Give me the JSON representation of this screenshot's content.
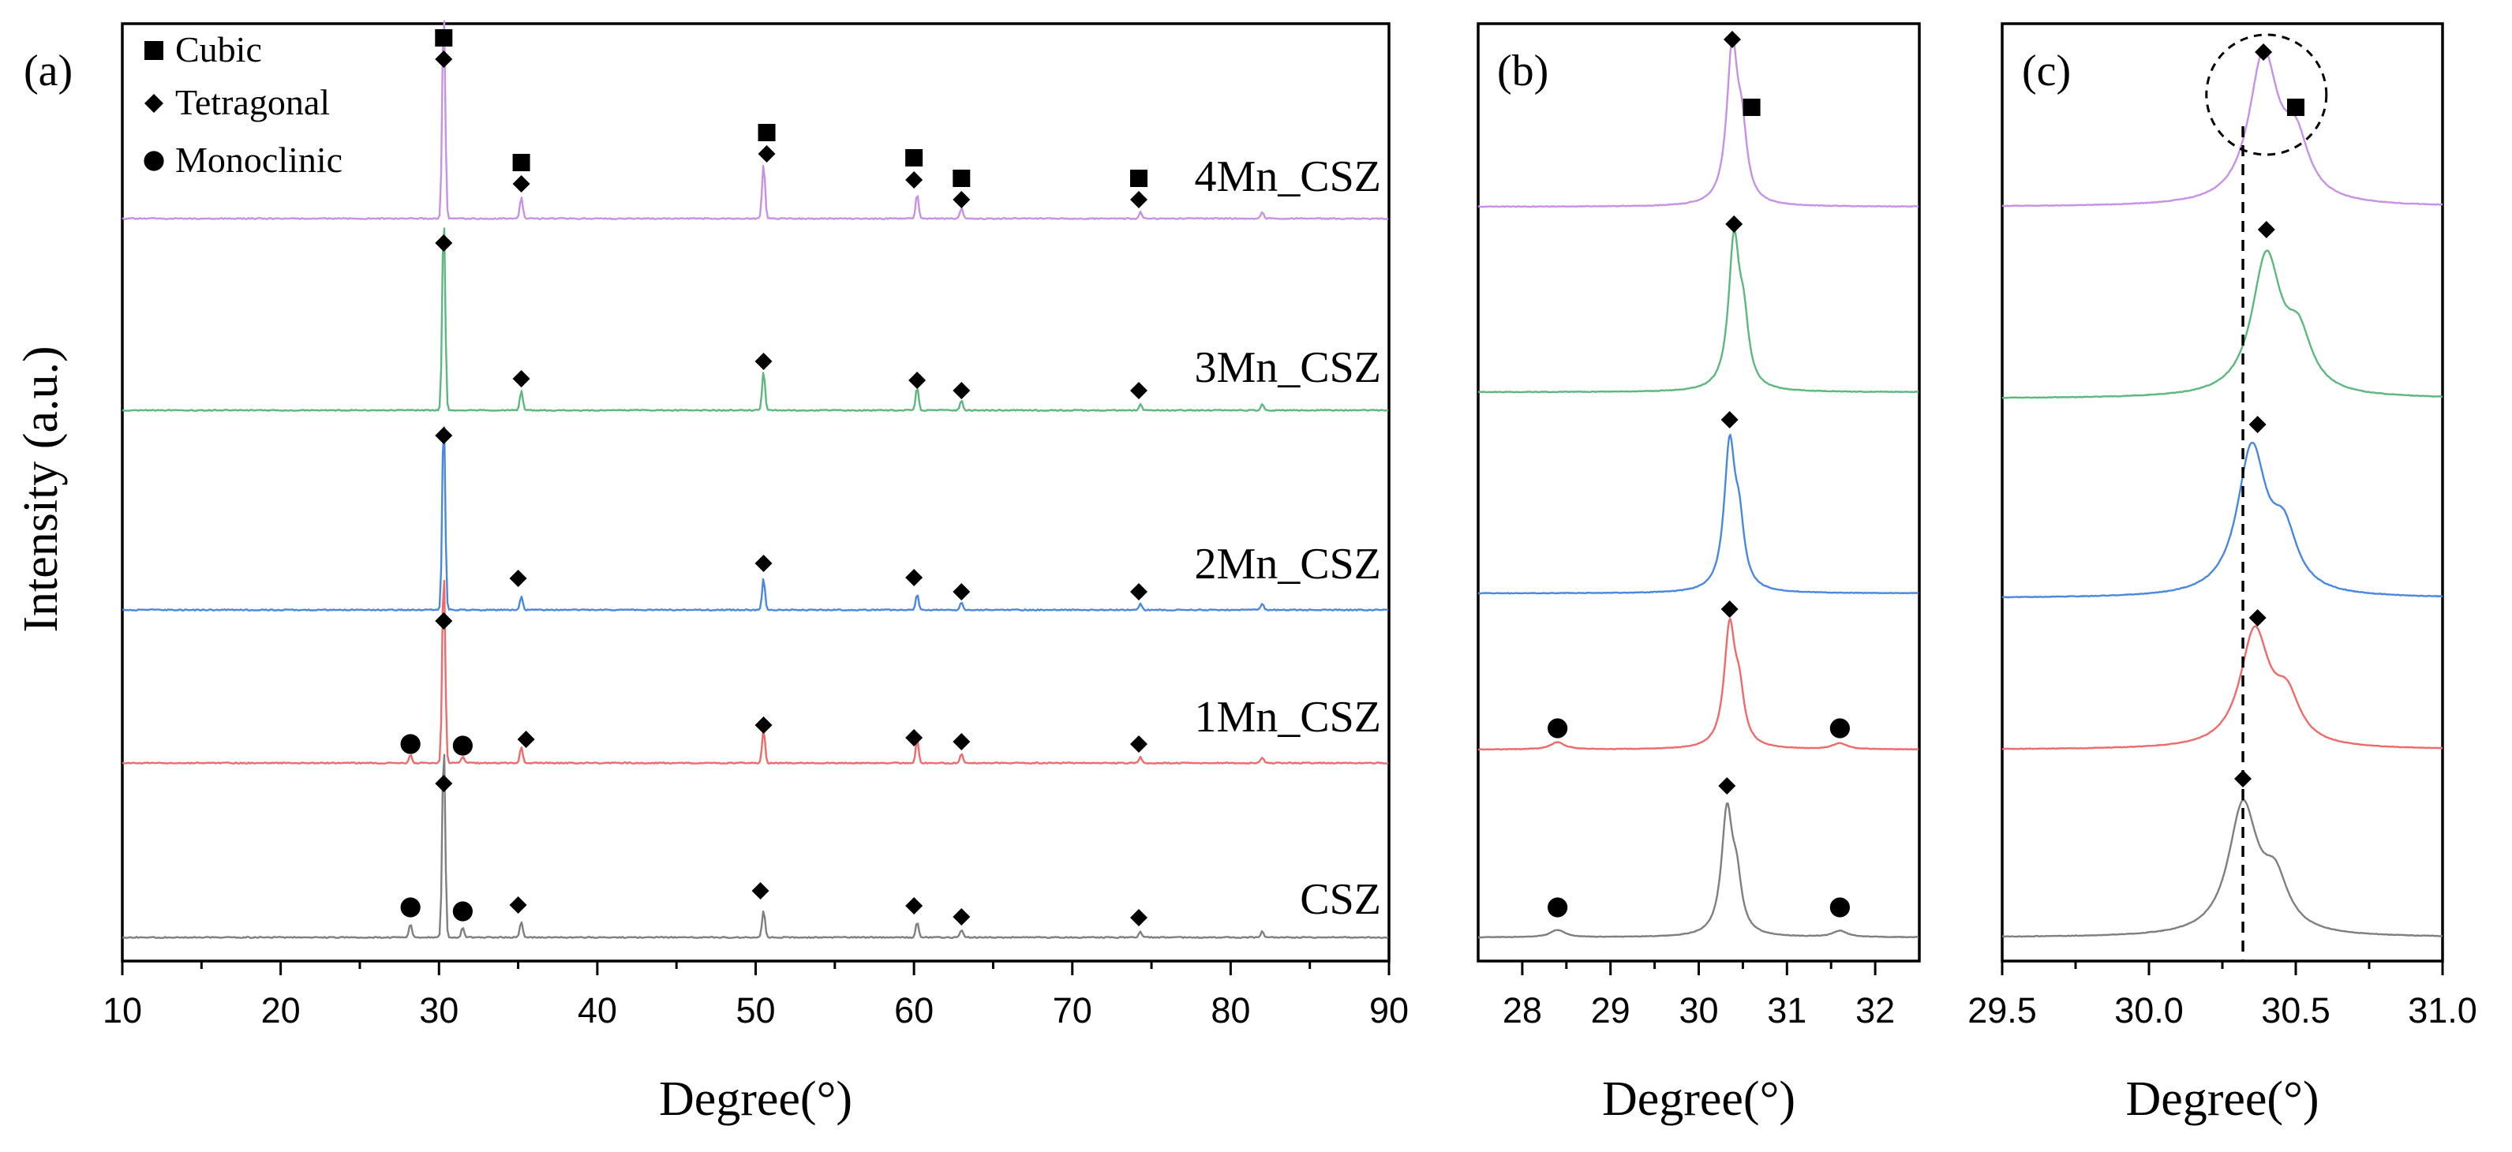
{
  "chart_data": [
    {
      "panel": "(a)",
      "type": "line",
      "xlabel": "Degree(°)",
      "ylabel": "Intensity (a.u.)",
      "xlim": [
        10,
        90
      ],
      "xticks": [
        "10",
        "20",
        "30",
        "40",
        "50",
        "60",
        "70",
        "80",
        "90"
      ],
      "legend": [
        {
          "marker": "square",
          "label": "Cubic"
        },
        {
          "marker": "diamond",
          "label": "Tetragonal"
        },
        {
          "marker": "circle",
          "label": "Monoclinic"
        }
      ],
      "legend_position": "top-left",
      "series": [
        {
          "name": "4Mn_CSZ",
          "color": "#c792e6",
          "peaks": [
            {
              "x": 30.3,
              "h": 1.0
            },
            {
              "x": 35.2,
              "h": 0.1
            },
            {
              "x": 50.5,
              "h": 0.26
            },
            {
              "x": 60.2,
              "h": 0.12
            },
            {
              "x": 63.0,
              "h": 0.05
            },
            {
              "x": 74.3,
              "h": 0.03
            },
            {
              "x": 82.0,
              "h": 0.03
            }
          ],
          "markers": [
            {
              "x": 30.3,
              "shape": "square"
            },
            {
              "x": 30.3,
              "shape": "diamond"
            },
            {
              "x": 35.2,
              "shape": "square"
            },
            {
              "x": 35.2,
              "shape": "diamond"
            },
            {
              "x": 50.7,
              "shape": "square"
            },
            {
              "x": 50.7,
              "shape": "diamond"
            },
            {
              "x": 60.0,
              "shape": "square"
            },
            {
              "x": 60.0,
              "shape": "diamond"
            },
            {
              "x": 63.0,
              "shape": "square"
            },
            {
              "x": 63.0,
              "shape": "diamond"
            },
            {
              "x": 74.2,
              "shape": "square"
            },
            {
              "x": 74.2,
              "shape": "diamond"
            }
          ]
        },
        {
          "name": "3Mn_CSZ",
          "color": "#5cb87e",
          "peaks": [
            {
              "x": 30.3,
              "h": 1.0
            },
            {
              "x": 35.2,
              "h": 0.1
            },
            {
              "x": 50.5,
              "h": 0.2
            },
            {
              "x": 60.2,
              "h": 0.12
            },
            {
              "x": 63.0,
              "h": 0.05
            },
            {
              "x": 74.3,
              "h": 0.03
            },
            {
              "x": 82.0,
              "h": 0.03
            }
          ],
          "markers": [
            {
              "x": 30.3,
              "shape": "diamond"
            },
            {
              "x": 35.2,
              "shape": "diamond"
            },
            {
              "x": 50.5,
              "shape": "diamond"
            },
            {
              "x": 60.2,
              "shape": "diamond"
            },
            {
              "x": 63.0,
              "shape": "diamond"
            },
            {
              "x": 74.2,
              "shape": "diamond"
            }
          ]
        },
        {
          "name": "2Mn_CSZ",
          "color": "#4a88e0",
          "peaks": [
            {
              "x": 30.3,
              "h": 1.0
            },
            {
              "x": 35.2,
              "h": 0.07
            },
            {
              "x": 50.5,
              "h": 0.16
            },
            {
              "x": 60.2,
              "h": 0.08
            },
            {
              "x": 63.0,
              "h": 0.04
            },
            {
              "x": 74.3,
              "h": 0.03
            },
            {
              "x": 82.0,
              "h": 0.03
            }
          ],
          "markers": [
            {
              "x": 30.3,
              "shape": "diamond"
            },
            {
              "x": 35.0,
              "shape": "diamond"
            },
            {
              "x": 50.5,
              "shape": "diamond"
            },
            {
              "x": 60.0,
              "shape": "diamond"
            },
            {
              "x": 63.0,
              "shape": "diamond"
            },
            {
              "x": 74.2,
              "shape": "diamond"
            }
          ]
        },
        {
          "name": "1Mn_CSZ",
          "color": "#ef6a6a",
          "peaks": [
            {
              "x": 28.2,
              "h": 0.04
            },
            {
              "x": 30.3,
              "h": 1.0
            },
            {
              "x": 31.5,
              "h": 0.03
            },
            {
              "x": 35.2,
              "h": 0.08
            },
            {
              "x": 50.5,
              "h": 0.17
            },
            {
              "x": 60.2,
              "h": 0.12
            },
            {
              "x": 63.0,
              "h": 0.05
            },
            {
              "x": 74.3,
              "h": 0.03
            },
            {
              "x": 82.0,
              "h": 0.03
            }
          ],
          "markers": [
            {
              "x": 28.2,
              "shape": "circle"
            },
            {
              "x": 31.5,
              "shape": "circle"
            },
            {
              "x": 30.3,
              "shape": "diamond"
            },
            {
              "x": 35.5,
              "shape": "diamond"
            },
            {
              "x": 50.5,
              "shape": "diamond"
            },
            {
              "x": 60.0,
              "shape": "diamond"
            },
            {
              "x": 63.0,
              "shape": "diamond"
            },
            {
              "x": 74.2,
              "shape": "diamond"
            }
          ]
        },
        {
          "name": "CSZ",
          "color": "#7f7f7f",
          "peaks": [
            {
              "x": 28.2,
              "h": 0.07
            },
            {
              "x": 30.3,
              "h": 1.0
            },
            {
              "x": 31.5,
              "h": 0.05
            },
            {
              "x": 35.2,
              "h": 0.08
            },
            {
              "x": 50.5,
              "h": 0.14
            },
            {
              "x": 60.2,
              "h": 0.08
            },
            {
              "x": 63.0,
              "h": 0.04
            },
            {
              "x": 74.3,
              "h": 0.03
            },
            {
              "x": 82.0,
              "h": 0.03
            }
          ],
          "markers": [
            {
              "x": 28.2,
              "shape": "circle"
            },
            {
              "x": 31.5,
              "shape": "circle"
            },
            {
              "x": 30.3,
              "shape": "diamond"
            },
            {
              "x": 35.0,
              "shape": "diamond"
            },
            {
              "x": 50.3,
              "shape": "diamond"
            },
            {
              "x": 60.0,
              "shape": "diamond"
            },
            {
              "x": 63.0,
              "shape": "diamond"
            },
            {
              "x": 74.2,
              "shape": "diamond"
            }
          ]
        }
      ]
    },
    {
      "panel": "(b)",
      "type": "line",
      "xlabel": "Degree(°)",
      "xlim": [
        27.5,
        32.5
      ],
      "xticks": [
        "28",
        "29",
        "30",
        "31",
        "32"
      ],
      "series": [
        {
          "name": "4Mn_CSZ",
          "color": "#c792e6",
          "peak": 30.38,
          "markers": [
            {
              "x": 30.38,
              "shape": "diamond"
            },
            {
              "x": 30.6,
              "shape": "square"
            }
          ]
        },
        {
          "name": "3Mn_CSZ",
          "color": "#5cb87e",
          "peak": 30.4,
          "markers": [
            {
              "x": 30.4,
              "shape": "diamond"
            }
          ]
        },
        {
          "name": "2Mn_CSZ",
          "color": "#4a88e0",
          "peak": 30.35,
          "markers": [
            {
              "x": 30.35,
              "shape": "diamond"
            }
          ]
        },
        {
          "name": "1Mn_CSZ",
          "color": "#ef6a6a",
          "peak": 30.35,
          "markers": [
            {
              "x": 28.4,
              "shape": "circle"
            },
            {
              "x": 30.35,
              "shape": "diamond"
            },
            {
              "x": 31.6,
              "shape": "circle"
            }
          ]
        },
        {
          "name": "CSZ",
          "color": "#7f7f7f",
          "peak": 30.32,
          "markers": [
            {
              "x": 28.4,
              "shape": "circle"
            },
            {
              "x": 30.32,
              "shape": "diamond"
            },
            {
              "x": 31.6,
              "shape": "circle"
            }
          ]
        }
      ]
    },
    {
      "panel": "(c)",
      "type": "line",
      "xlabel": "Degree(°)",
      "xlim": [
        29.5,
        31.0
      ],
      "xticks": [
        "29.5",
        "30.0",
        "30.5",
        "31.0"
      ],
      "reference_line_x": 30.32,
      "highlight_circle_x": 30.4,
      "series": [
        {
          "name": "4Mn_CSZ",
          "color": "#c792e6",
          "peak": 30.39,
          "markers": [
            {
              "x": 30.39,
              "shape": "diamond"
            },
            {
              "x": 30.5,
              "shape": "square"
            }
          ]
        },
        {
          "name": "3Mn_CSZ",
          "color": "#5cb87e",
          "peak": 30.4,
          "markers": [
            {
              "x": 30.4,
              "shape": "diamond"
            }
          ]
        },
        {
          "name": "2Mn_CSZ",
          "color": "#4a88e0",
          "peak": 30.35,
          "markers": [
            {
              "x": 30.37,
              "shape": "diamond"
            }
          ]
        },
        {
          "name": "1Mn_CSZ",
          "color": "#ef6a6a",
          "peak": 30.36,
          "markers": [
            {
              "x": 30.37,
              "shape": "diamond"
            }
          ]
        },
        {
          "name": "CSZ",
          "color": "#7f7f7f",
          "peak": 30.32,
          "markers": [
            {
              "x": 30.32,
              "shape": "diamond"
            }
          ]
        }
      ]
    }
  ]
}
